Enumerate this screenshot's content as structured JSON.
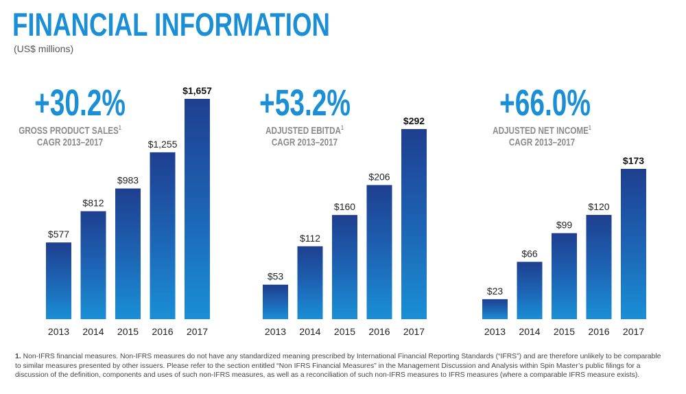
{
  "page": {
    "title": "FINANCIAL INFORMATION",
    "subtitle": "(US$ millions)"
  },
  "colors": {
    "accent": "#1a8fd6",
    "bar_top": "#1f3f8f",
    "bar_bottom": "#1a8fd6",
    "label_gray": "#8a8a8a"
  },
  "chart_data": [
    {
      "type": "bar",
      "headline": "+30.2%",
      "metric": "GROSS PRODUCT SALES",
      "footnote_ref": "1",
      "period": "CAGR 2013–2017",
      "categories": [
        "2013",
        "2014",
        "2015",
        "2016",
        "2017"
      ],
      "values": [
        577,
        812,
        983,
        1255,
        1657
      ],
      "labels": [
        "$577",
        "$812",
        "$983",
        "$1,255",
        "$1,657"
      ],
      "ylim": [
        0,
        1657
      ]
    },
    {
      "type": "bar",
      "headline": "+53.2%",
      "metric": "ADJUSTED EBITDA",
      "footnote_ref": "1",
      "period": "CAGR 2013–2017",
      "categories": [
        "2013",
        "2014",
        "2015",
        "2016",
        "2017"
      ],
      "values": [
        53,
        112,
        160,
        206,
        292
      ],
      "labels": [
        "$53",
        "$112",
        "$160",
        "$206",
        "$292"
      ],
      "ylim": [
        0,
        292
      ]
    },
    {
      "type": "bar",
      "headline": "+66.0%",
      "metric": "ADJUSTED NET INCOME",
      "footnote_ref": "1",
      "period": "CAGR 2013–2017",
      "categories": [
        "2013",
        "2014",
        "2015",
        "2016",
        "2017"
      ],
      "values": [
        23,
        66,
        99,
        120,
        173
      ],
      "labels": [
        "$23",
        "$66",
        "$99",
        "$120",
        "$173"
      ],
      "ylim": [
        0,
        173
      ]
    }
  ],
  "footnote": {
    "number": "1.",
    "text": "Non-IFRS financial measures. Non-IFRS measures do not have any standardized meaning prescribed by International Financial Reporting Standards (“IFRS”) and are therefore unlikely to be comparable to similar measures presented by other issuers. Please refer to the section entitled “Non IFRS Financial Measures” in the Management Discussion and Analysis within Spin Master’s public filings for a discussion of the definition, components and uses of such non-IFRS measures, as well as a reconciliation of such non-IFRS measures to IFRS measures (where a comparable IFRS measure exists)."
  }
}
